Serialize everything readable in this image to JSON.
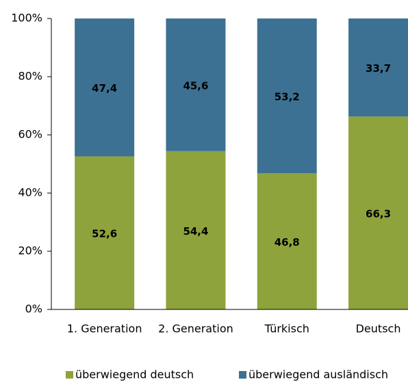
{
  "chart_data": {
    "type": "stacked_bar",
    "categories": [
      "1. Generation",
      "2. Generation",
      "Türkisch",
      "Deutsch"
    ],
    "series": [
      {
        "name": "überwiegend deutsch",
        "color": "#8ea33b",
        "values": [
          52.6,
          54.4,
          46.8,
          66.3
        ],
        "value_labels": [
          "52,6",
          "54,4",
          "46,8",
          "66,3"
        ]
      },
      {
        "name": "überwiegend ausländisch",
        "color": "#3d7193",
        "values": [
          47.4,
          45.6,
          53.2,
          33.7
        ],
        "value_labels": [
          "47,4",
          "45,6",
          "53,2",
          "33,7"
        ]
      }
    ],
    "ylim": [
      0,
      100
    ],
    "yticks": [
      {
        "value": 0,
        "label": "0%"
      },
      {
        "value": 20,
        "label": "20%"
      },
      {
        "value": 40,
        "label": "40%"
      },
      {
        "value": 60,
        "label": "60%"
      },
      {
        "value": 80,
        "label": "80%"
      },
      {
        "value": 100,
        "label": "100%"
      }
    ],
    "legend": "bottom"
  }
}
